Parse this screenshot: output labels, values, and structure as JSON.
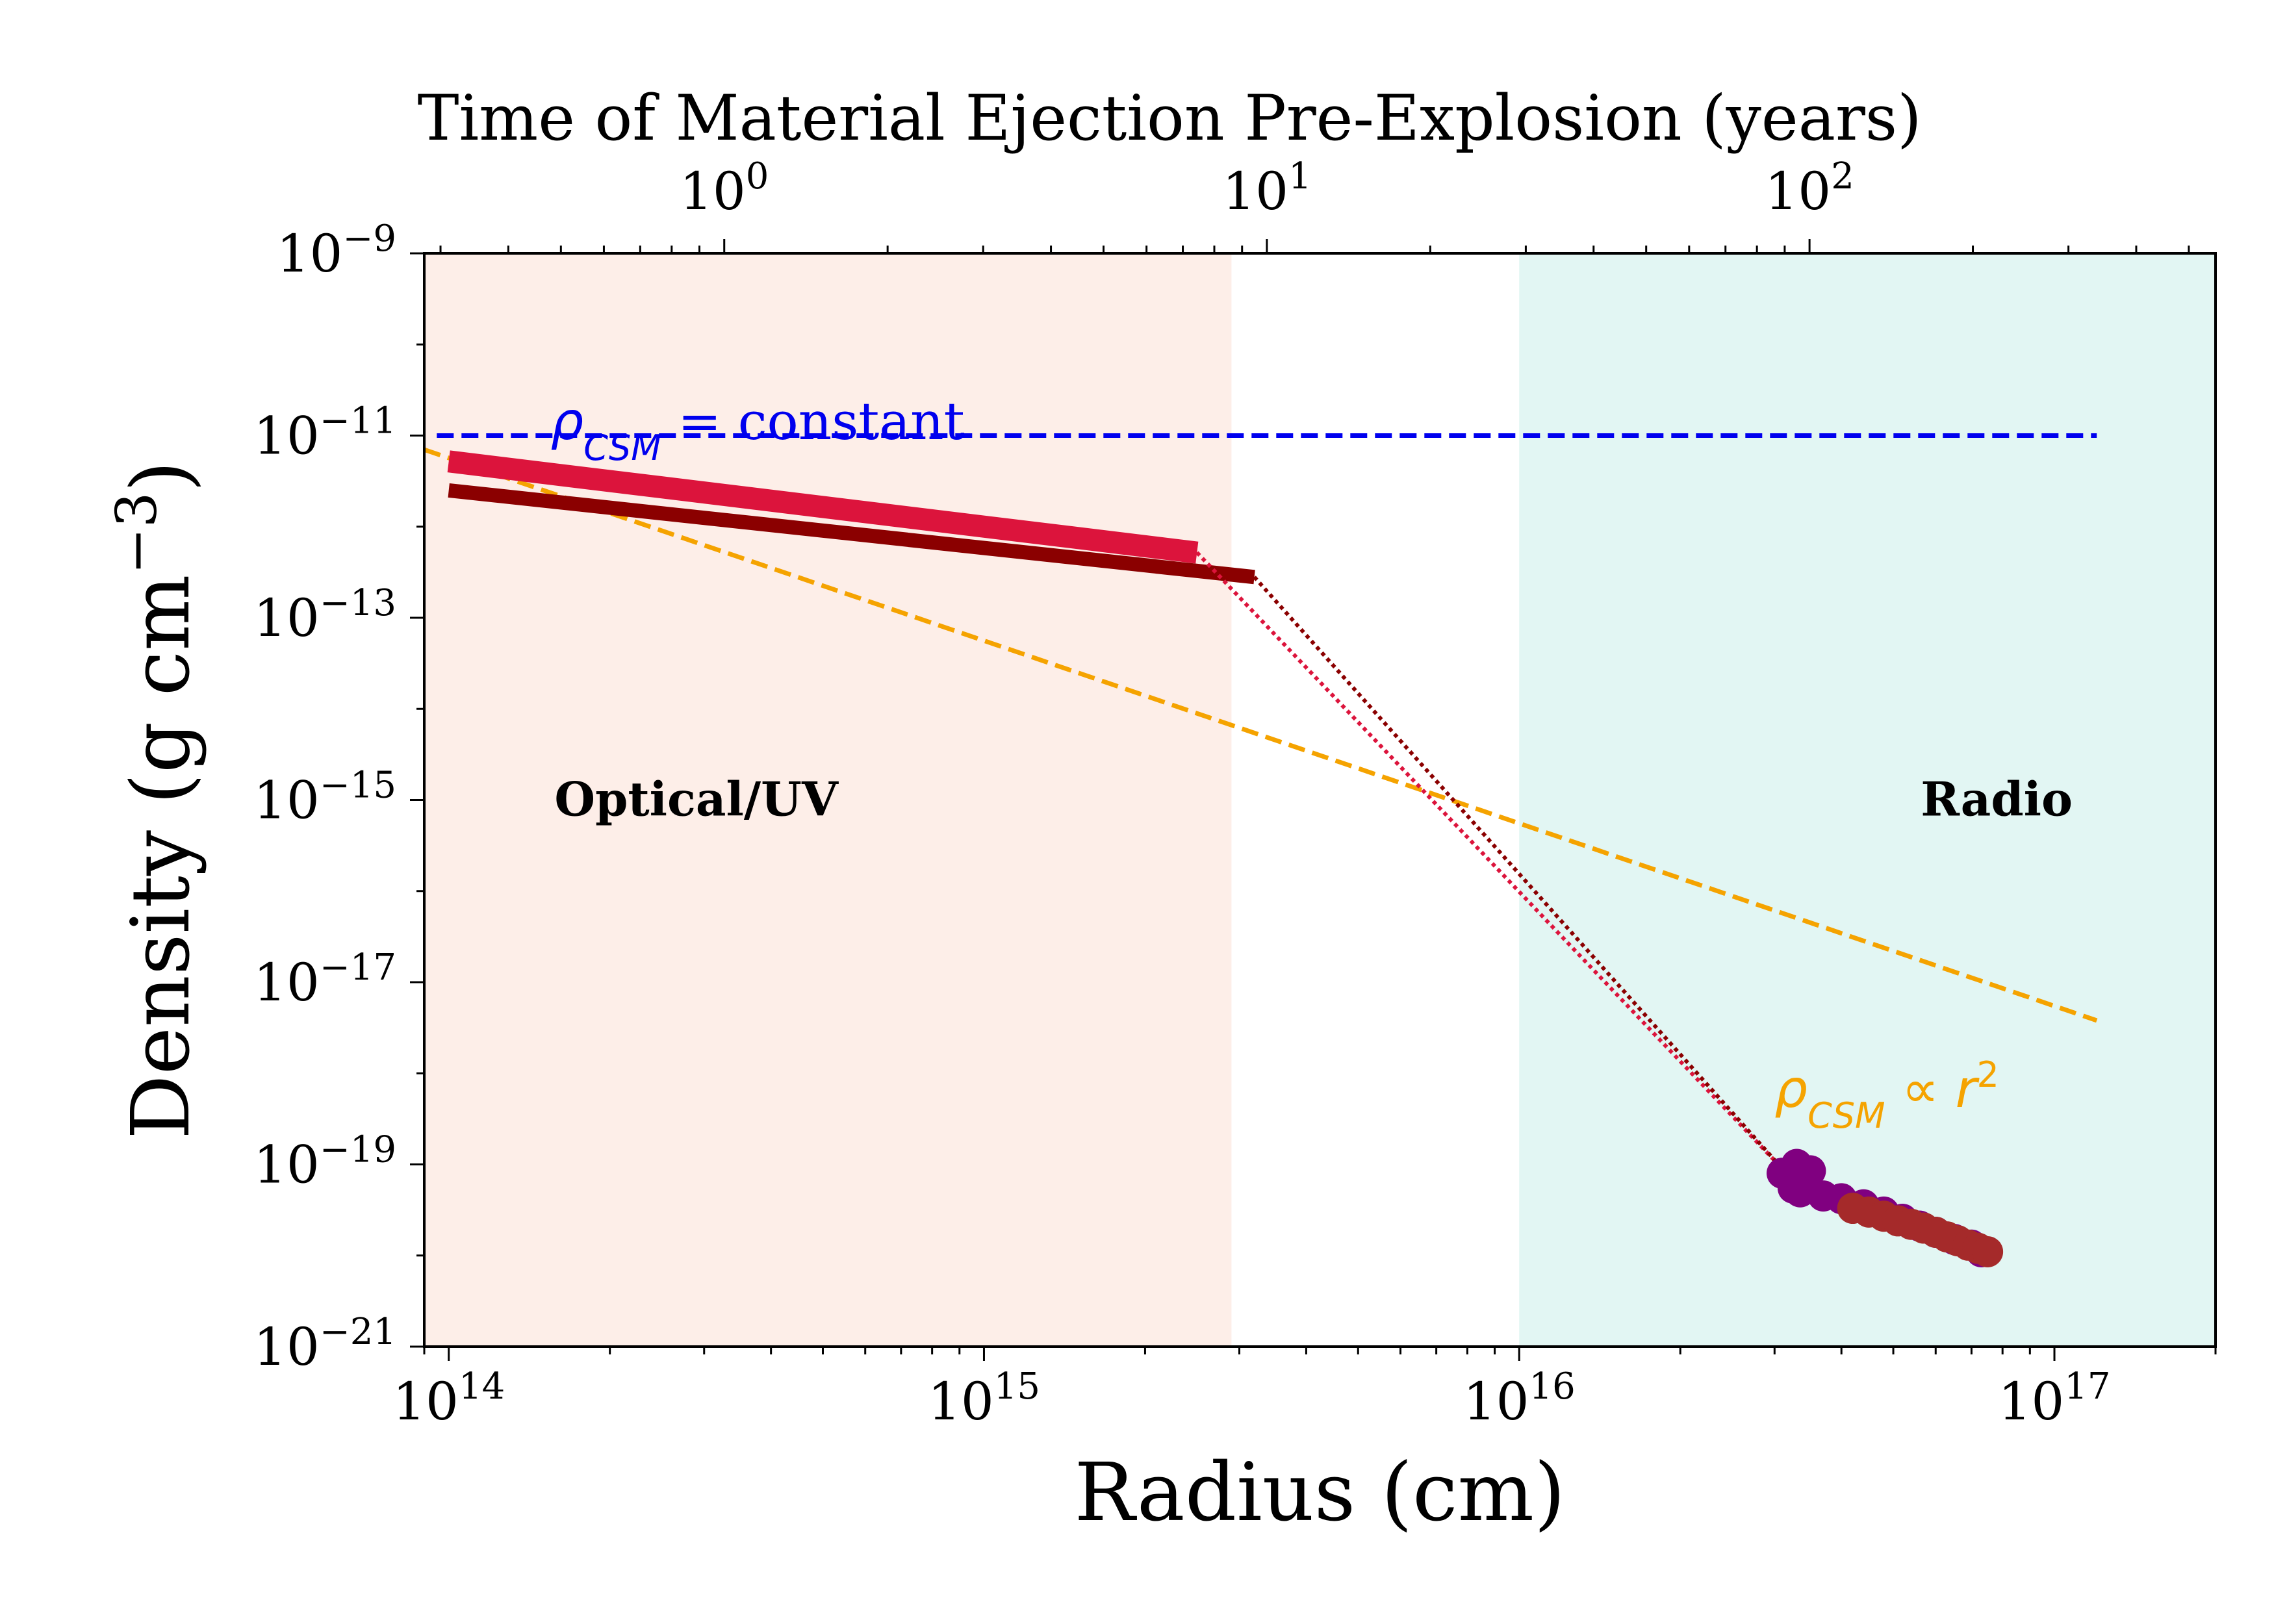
{
  "chart_data": {
    "type": "line",
    "xlabel": "Radius (cm)",
    "ylabel": "Density (g cm",
    "ylabel_sup": "−3",
    "ylabel_close": ")",
    "top_xlabel": "Time of Material Ejection Pre-Explosion (years)",
    "xscale": "log",
    "yscale": "log",
    "xlim": [
      90000000000000.0,
      2e+17
    ],
    "ylim": [
      1e-21,
      1e-09
    ],
    "top_xlim": [
      0.28,
      560
    ],
    "x_ticks": [
      {
        "value": 100000000000000.0,
        "base": "10",
        "exp": "14"
      },
      {
        "value": 1000000000000000.0,
        "base": "10",
        "exp": "15"
      },
      {
        "value": 1e+16,
        "base": "10",
        "exp": "16"
      },
      {
        "value": 1e+17,
        "base": "10",
        "exp": "17"
      }
    ],
    "y_ticks": [
      {
        "value": 1e-09,
        "base": "10",
        "exp": "−9"
      },
      {
        "value": 1e-11,
        "base": "10",
        "exp": "−11"
      },
      {
        "value": 1e-13,
        "base": "10",
        "exp": "−13"
      },
      {
        "value": 1e-15,
        "base": "10",
        "exp": "−15"
      },
      {
        "value": 1e-17,
        "base": "10",
        "exp": "−17"
      },
      {
        "value": 1e-19,
        "base": "10",
        "exp": "−19"
      },
      {
        "value": 1e-21,
        "base": "10",
        "exp": "−21"
      }
    ],
    "top_ticks": [
      {
        "value": 1,
        "base": "10",
        "exp": "0"
      },
      {
        "value": 10,
        "base": "10",
        "exp": "1"
      },
      {
        "value": 100,
        "base": "10",
        "exp": "2"
      }
    ],
    "regions": [
      {
        "label": "Optical/UV",
        "x_range": [
          90000000000000.0,
          2900000000000000.0
        ],
        "color": "#fdeee8",
        "label_pos": [
          290000000000000.0,
          1e-15
        ]
      },
      {
        "label": "Radio",
        "x_range": [
          1e+16,
          2e+17
        ],
        "color": "#e2f6f3",
        "label_pos": [
          7.8e+16,
          1e-15
        ]
      }
    ],
    "annotations": [
      {
        "text": "ρ",
        "sub": "CSM",
        "rest": " = constant",
        "color": "#0000ee",
        "pos": [
          155000000000000.0,
          1.5e-11
        ]
      },
      {
        "text": "ρ",
        "sub": "CSM",
        "rest": "  ∝ r",
        "sup": "2",
        "color": "#f5a300",
        "pos": [
          3e+16,
          7e-19
        ]
      }
    ],
    "series": [
      {
        "style": "dashed",
        "color": "#0000ee",
        "width": 7,
        "x": [
          95000000000000.0,
          1.2e+17
        ],
        "y": [
          1e-11,
          1e-11
        ]
      },
      {
        "style": "dashed",
        "color": "#f5a300",
        "width": 7,
        "x": [
          90000000000000.0,
          1.2e+17
        ],
        "y": [
          7e-12,
          3.8e-18
        ]
      },
      {
        "style": "solid",
        "color": "#dc143c",
        "width": 34,
        "x": [
          100000000000000.0,
          2500000000000000.0
        ],
        "y": [
          5.2e-12,
          5.2e-13
        ]
      },
      {
        "style": "solid",
        "color": "#8b0000",
        "width": 22,
        "x": [
          100000000000000.0,
          3200000000000000.0
        ],
        "y": [
          2.5e-12,
          2.8e-13
        ]
      },
      {
        "style": "dotted",
        "color": "#dc143c",
        "width": 6,
        "x": [
          2500000000000000.0,
          3.1e+16
        ],
        "y": [
          5.2e-13,
          9e-20
        ]
      },
      {
        "style": "dotted",
        "color": "#8b0000",
        "width": 6,
        "x": [
          3200000000000000.0,
          3.1e+16
        ],
        "y": [
          2.8e-13,
          9e-20
        ]
      },
      {
        "style": "markers",
        "color": "#800080",
        "marker_size": 24,
        "x": [
          3.1e+16,
          3.3e+16,
          3.5e+16,
          3.25e+16,
          3.35e+16,
          3.7e+16,
          4e+16,
          4.4e+16,
          4.8e+16,
          5.2e+16,
          5.6e+16,
          6e+16,
          6.5e+16,
          7e+16,
          7.3e+16
        ],
        "y": [
          8e-20,
          1e-19,
          8.5e-20,
          5.5e-20,
          5e-20,
          4.5e-20,
          4.2e-20,
          3.6e-20,
          3e-20,
          2.5e-20,
          2.1e-20,
          1.8e-20,
          1.5e-20,
          1.3e-20,
          1.1e-20
        ]
      },
      {
        "style": "markers",
        "color": "#a52a2a",
        "marker_size": 24,
        "x": [
          4.2e+16,
          4.5e+16,
          4.8e+16,
          5.1e+16,
          5.4e+16,
          5.7e+16,
          6e+16,
          6.3e+16,
          6.6e+16,
          6.9e+16,
          7.2e+16,
          7.5e+16
        ],
        "y": [
          3.3e-20,
          3e-20,
          2.7e-20,
          2.4e-20,
          2.2e-20,
          2e-20,
          1.8e-20,
          1.6e-20,
          1.45e-20,
          1.3e-20,
          1.2e-20,
          1.1e-20
        ]
      }
    ],
    "grid": false,
    "legend": "none"
  }
}
